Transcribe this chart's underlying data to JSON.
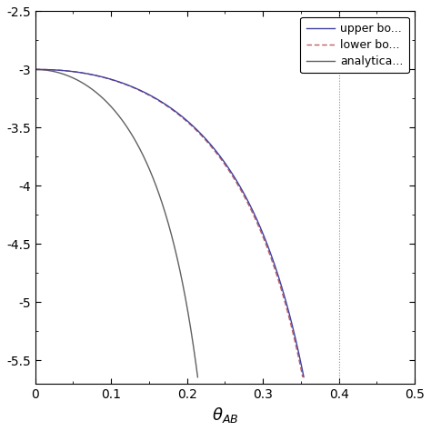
{
  "title": "",
  "xlabel": "$\\theta_{AB}$",
  "ylabel": "",
  "xlim": [
    0,
    0.5
  ],
  "ylim": [
    -5.7,
    -2.5
  ],
  "yticks": [
    -5.5,
    -5.0,
    -4.5,
    -4.0,
    -3.5,
    -3.0,
    -2.5
  ],
  "xticks": [
    0,
    0.1,
    0.2,
    0.3,
    0.4,
    0.5
  ],
  "ytick_labels": [
    "-5.5",
    "-5",
    "-4.5",
    "-4",
    "-3.5",
    "-3",
    "-2.5"
  ],
  "xtick_labels": [
    "0",
    "0.1",
    "0.2",
    "0.3",
    "0.4",
    "0.5"
  ],
  "vline_x": 0.4,
  "legend_labels": [
    "upper bo...",
    "lower bo...",
    "analytica..."
  ],
  "c_upper": "#4040a0",
  "c_lower": "#c06060",
  "c_anal": "#606060",
  "background_color": "#ffffff",
  "upper_t_max": 0.485,
  "upper_diverge": 0.485,
  "lower_t_max": 0.485,
  "anal_t_max": 0.3
}
